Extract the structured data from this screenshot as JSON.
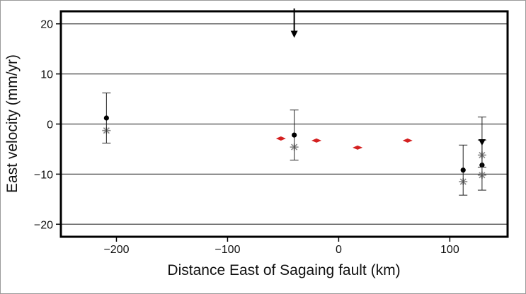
{
  "chart_data": {
    "type": "scatter",
    "title": "",
    "xlabel": "Distance East of Sagaing fault (km)",
    "ylabel": "East velocity (mm/yr)",
    "xlim": [
      -250,
      152
    ],
    "ylim": [
      -22.5,
      22.5
    ],
    "xticks": [
      -200,
      -100,
      0,
      100
    ],
    "xtick_labels": [
      "−200",
      "−100",
      "0",
      "100"
    ],
    "yticks": [
      -20,
      -10,
      0,
      10,
      20
    ],
    "ytick_labels": [
      "−20",
      "−10",
      "0",
      "10",
      "20"
    ],
    "grid": "horizontal",
    "legend": "none",
    "colors": {
      "observed": "#000000",
      "modeled_gray": "#888888",
      "modeled_red": "#d42020"
    },
    "series": [
      {
        "marker": "circle",
        "color": "#000000",
        "points": [
          {
            "x": -209,
            "y": 1.2,
            "err": 5.0
          },
          {
            "x": -40,
            "y": -2.2,
            "err": 5.0
          },
          {
            "x": 112,
            "y": -9.2,
            "err": 5.0
          },
          {
            "x": 129,
            "y": -8.2,
            "err": 5.0
          }
        ]
      },
      {
        "marker": "triangle-down",
        "color": "#000000",
        "points": [
          {
            "x": 129,
            "y": -3.6,
            "err": 5.0
          }
        ]
      },
      {
        "marker": "star",
        "color": "#888888",
        "points": [
          {
            "x": -209,
            "y": -1.3
          },
          {
            "x": -40,
            "y": -4.6
          },
          {
            "x": 112,
            "y": -11.5
          },
          {
            "x": 129,
            "y": -6.2
          },
          {
            "x": 129,
            "y": -10.2
          }
        ]
      },
      {
        "marker": "diamond",
        "color": "#d42020",
        "points": [
          {
            "x": -52,
            "y": -2.9
          },
          {
            "x": -20,
            "y": -3.3
          },
          {
            "x": 17,
            "y": -4.7
          },
          {
            "x": 62,
            "y": -3.3
          }
        ]
      }
    ],
    "annotations": [
      {
        "type": "arrow-down",
        "x": -40,
        "y_from": 22.5,
        "y_to": 17.5,
        "color": "#000000"
      }
    ]
  }
}
